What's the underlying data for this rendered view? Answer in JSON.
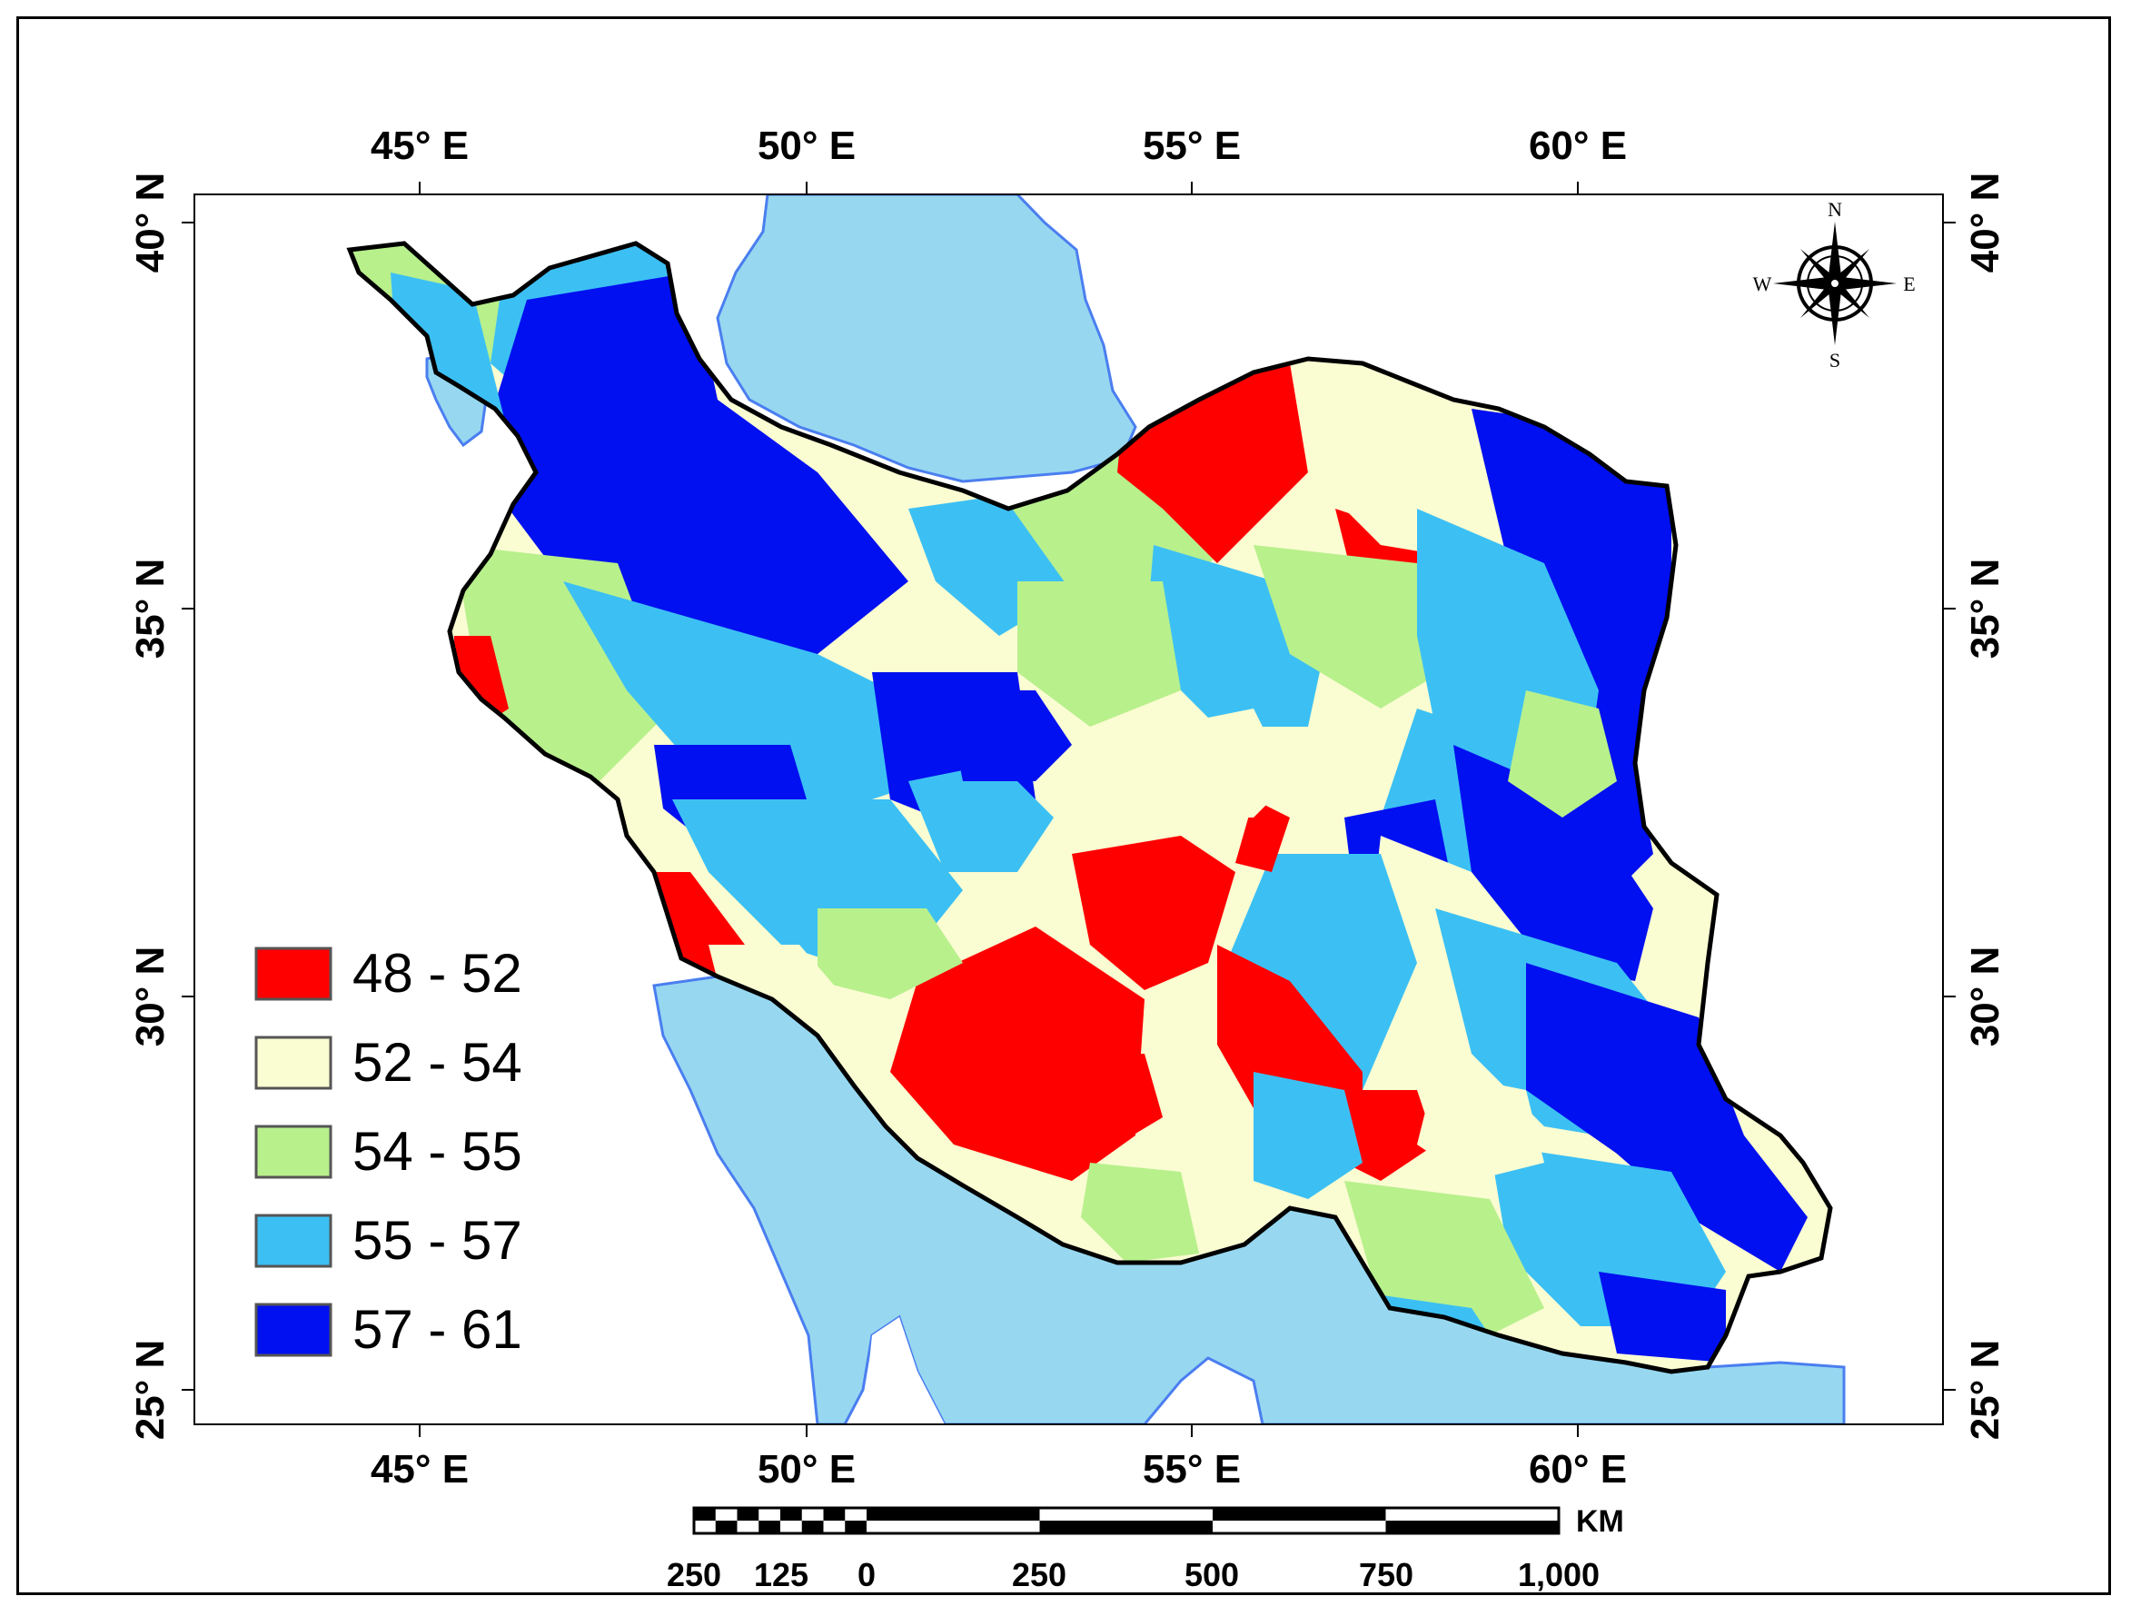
{
  "map": {
    "longitude_labels": [
      "45° E",
      "50° E",
      "55° E",
      "60° E"
    ],
    "latitude_labels": [
      "40° N",
      "35° N",
      "30° N",
      "25° N"
    ],
    "legend": [
      {
        "label": "48 - 52",
        "color": "#ff0000"
      },
      {
        "label": "52 - 54",
        "color": "#fafcd2"
      },
      {
        "label": "54 - 55",
        "color": "#b8f08c"
      },
      {
        "label": "55 - 57",
        "color": "#3cc0f4"
      },
      {
        "label": "57 - 61",
        "color": "#0010f0"
      }
    ],
    "scale_bar": {
      "unit": "KM",
      "labels": [
        "250",
        "125",
        "0",
        "250",
        "500",
        "750",
        "1,000"
      ]
    },
    "north_arrow": {
      "n": "N",
      "s": "S",
      "e": "E",
      "w": "W"
    },
    "colors": {
      "water": "#97d8f0",
      "water_edge": "#4a7ef0",
      "border": "#000000"
    }
  }
}
